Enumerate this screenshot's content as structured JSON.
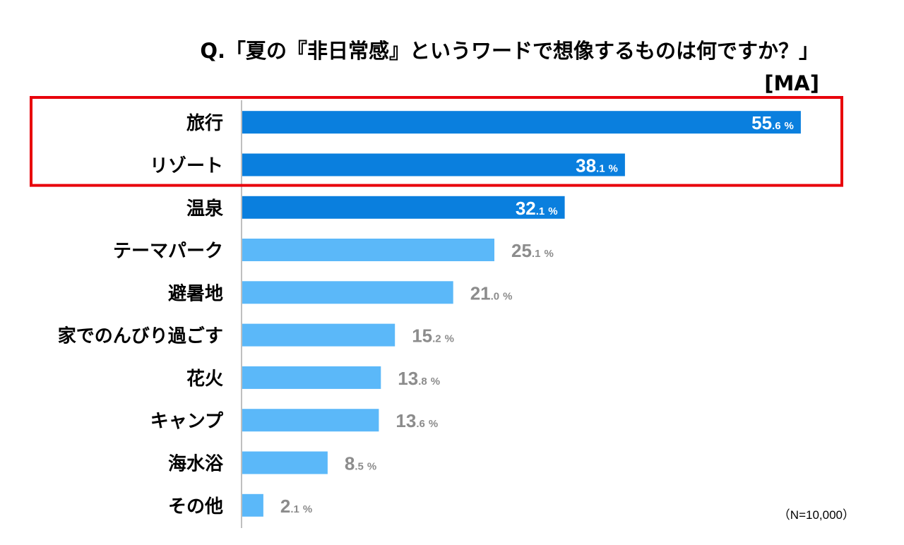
{
  "chart_data": {
    "type": "bar",
    "orientation": "horizontal",
    "title": "Q.「夏の『非日常感』というワードで想像するものは何ですか？」",
    "subtitle": "[MA]",
    "note": "（N=10,000）",
    "unit": "%",
    "categories": [
      "旅行",
      "リゾート",
      "温泉",
      "テーマパーク",
      "避暑地",
      "家でのんびり過ごす",
      "花火",
      "キャンプ",
      "海水浴",
      "その他"
    ],
    "values": [
      55.6,
      38.1,
      32.1,
      25.1,
      21.0,
      15.2,
      13.8,
      13.6,
      8.5,
      2.1
    ],
    "value_labels": [
      {
        "int": "55",
        "dec": ".6",
        "unit": "%"
      },
      {
        "int": "38",
        "dec": ".1",
        "unit": "%"
      },
      {
        "int": "32",
        "dec": ".1",
        "unit": "%"
      },
      {
        "int": "25",
        "dec": ".1",
        "unit": "%"
      },
      {
        "int": "21",
        "dec": ".0",
        "unit": "%"
      },
      {
        "int": "15",
        "dec": ".2",
        "unit": "%"
      },
      {
        "int": "13",
        "dec": ".8",
        "unit": "%"
      },
      {
        "int": "13",
        "dec": ".6",
        "unit": "%"
      },
      {
        "int": "8",
        "dec": ".5",
        "unit": "%"
      },
      {
        "int": "2",
        "dec": ".1",
        "unit": "%"
      }
    ],
    "top_highlight_count": 3,
    "highlight_box_count": 2,
    "xlim": [
      0,
      58
    ],
    "grid": false,
    "legend": "none",
    "colors": {
      "top_bar": "#0a7fde",
      "other_bar": "#5bb8f9",
      "top_label": "#ffffff",
      "other_label": "#8c8c8c",
      "highlight_box": "#e8000b",
      "axis": "#bfbfbf"
    }
  }
}
